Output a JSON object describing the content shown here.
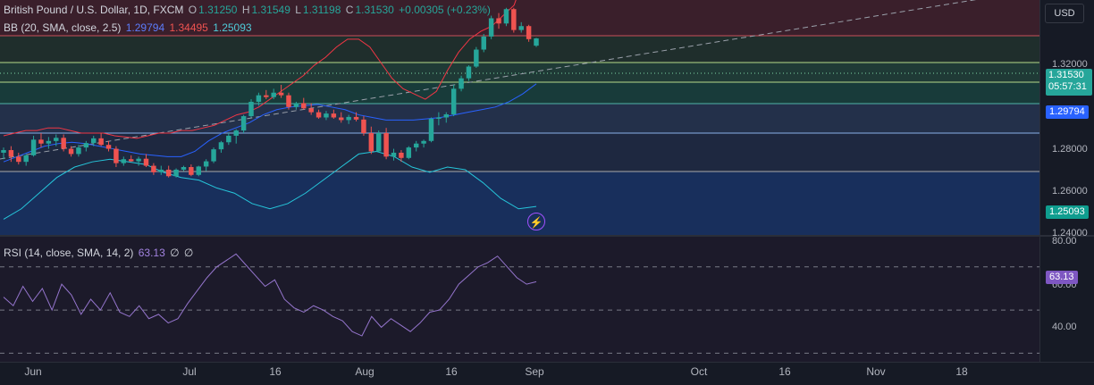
{
  "symbol_header": {
    "title": "British Pound / U.S. Dollar, 1D, FXCM",
    "o_label": "O",
    "o_value": "1.31250",
    "h_label": "H",
    "h_value": "1.31549",
    "l_label": "L",
    "l_value": "1.31198",
    "c_label": "C",
    "c_value": "1.31530",
    "change": "+0.00305 (+0.23%)"
  },
  "bb_legend": {
    "label": "BB (20, SMA, close, 2.5)",
    "basis": "1.29794",
    "upper": "1.34495",
    "lower": "1.25093"
  },
  "rsi_legend": {
    "label": "RSI (14, close, SMA, 14, 2)",
    "value": "63.13",
    "extra1": "∅",
    "extra2": "∅"
  },
  "currency_button": "USD",
  "price_axis": {
    "ticks": [
      "1.32000",
      "1.28000",
      "1.26000",
      "1.24000"
    ],
    "last_price": "1.31530",
    "countdown": "05:57:31",
    "basis_label": "1.29794",
    "lower_label": "1.25093"
  },
  "rsi_axis": {
    "ticks": [
      "80.00",
      "60.00",
      "40.00"
    ],
    "value_label": "63.13"
  },
  "time_axis": [
    "Jun",
    "Jul",
    "16",
    "Aug",
    "16",
    "Sep",
    "Oct",
    "16",
    "Nov",
    "18"
  ],
  "colors": {
    "background": "#161a25",
    "bull": "#26a69a",
    "bear": "#ef5350",
    "bb_basis": "#2962ff",
    "bb_upper": "#f23645",
    "bb_lower": "#26c6da",
    "rsi": "#9575cd",
    "alert": "#a251ff"
  },
  "chart_data": {
    "type": "candlestick",
    "price_scale": [
      1.24,
      1.33
    ],
    "candles_ohlc": [
      [
        1.2715,
        1.2735,
        1.269,
        1.2725
      ],
      [
        1.2725,
        1.274,
        1.268,
        1.27
      ],
      [
        1.27,
        1.2715,
        1.267,
        1.268
      ],
      [
        1.268,
        1.271,
        1.2665,
        1.2705
      ],
      [
        1.2705,
        1.278,
        1.27,
        1.2765
      ],
      [
        1.2765,
        1.279,
        1.2735,
        1.275
      ],
      [
        1.275,
        1.2775,
        1.273,
        1.276
      ],
      [
        1.276,
        1.2785,
        1.274,
        1.2772
      ],
      [
        1.2772,
        1.2785,
        1.272,
        1.273
      ],
      [
        1.273,
        1.274,
        1.27,
        1.271
      ],
      [
        1.271,
        1.2745,
        1.27,
        1.2735
      ],
      [
        1.2735,
        1.276,
        1.272,
        1.2752
      ],
      [
        1.2752,
        1.278,
        1.274,
        1.277
      ],
      [
        1.277,
        1.279,
        1.274,
        1.2745
      ],
      [
        1.2745,
        1.276,
        1.272,
        1.273
      ],
      [
        1.273,
        1.274,
        1.266,
        1.2675
      ],
      [
        1.2675,
        1.27,
        1.2665,
        1.269
      ],
      [
        1.269,
        1.2705,
        1.268,
        1.2682
      ],
      [
        1.2682,
        1.27,
        1.2665,
        1.2692
      ],
      [
        1.2692,
        1.271,
        1.266,
        1.2665
      ],
      [
        1.2665,
        1.2675,
        1.263,
        1.264
      ],
      [
        1.264,
        1.2665,
        1.263,
        1.265
      ],
      [
        1.265,
        1.2665,
        1.262,
        1.2625
      ],
      [
        1.2625,
        1.2655,
        1.262,
        1.265
      ],
      [
        1.265,
        1.2665,
        1.2645,
        1.266
      ],
      [
        1.266,
        1.267,
        1.2625,
        1.263
      ],
      [
        1.263,
        1.2665,
        1.2625,
        1.2662
      ],
      [
        1.2662,
        1.269,
        1.2645,
        1.2682
      ],
      [
        1.2682,
        1.2735,
        1.2675,
        1.2728
      ],
      [
        1.2728,
        1.276,
        1.2715,
        1.2755
      ],
      [
        1.2755,
        1.279,
        1.2745,
        1.278
      ],
      [
        1.278,
        1.2805,
        1.275,
        1.28
      ],
      [
        1.28,
        1.286,
        1.279,
        1.2855
      ],
      [
        1.2855,
        1.292,
        1.285,
        1.291
      ],
      [
        1.291,
        1.2945,
        1.2895,
        1.2935
      ],
      [
        1.2935,
        1.2955,
        1.292,
        1.2928
      ],
      [
        1.2928,
        1.296,
        1.292,
        1.2945
      ],
      [
        1.2945,
        1.2975,
        1.2925,
        1.2935
      ],
      [
        1.2935,
        1.2945,
        1.288,
        1.289
      ],
      [
        1.289,
        1.291,
        1.288,
        1.2905
      ],
      [
        1.2905,
        1.2925,
        1.288,
        1.2885
      ],
      [
        1.2885,
        1.2905,
        1.286,
        1.287
      ],
      [
        1.287,
        1.288,
        1.2845,
        1.285
      ],
      [
        1.285,
        1.2875,
        1.284,
        1.2865
      ],
      [
        1.2865,
        1.288,
        1.2845,
        1.285
      ],
      [
        1.285,
        1.287,
        1.283,
        1.284
      ],
      [
        1.284,
        1.286,
        1.2825,
        1.2852
      ],
      [
        1.2852,
        1.287,
        1.2835,
        1.2842
      ],
      [
        1.2842,
        1.2855,
        1.278,
        1.279
      ],
      [
        1.279,
        1.2815,
        1.271,
        1.272
      ],
      [
        1.272,
        1.28,
        1.2715,
        1.279
      ],
      [
        1.279,
        1.281,
        1.269,
        1.27
      ],
      [
        1.27,
        1.273,
        1.2685,
        1.2715
      ],
      [
        1.2715,
        1.2725,
        1.268,
        1.2695
      ],
      [
        1.2695,
        1.274,
        1.269,
        1.2735
      ],
      [
        1.2735,
        1.276,
        1.272,
        1.275
      ],
      [
        1.275,
        1.2765,
        1.2735,
        1.276
      ],
      [
        1.276,
        1.285,
        1.2755,
        1.2845
      ],
      [
        1.2845,
        1.287,
        1.282,
        1.285
      ],
      [
        1.285,
        1.287,
        1.283,
        1.2862
      ],
      [
        1.2862,
        1.2975,
        1.2855,
        1.296
      ],
      [
        1.296,
        1.301,
        1.295,
        1.3
      ],
      [
        1.3,
        1.305,
        1.299,
        1.3045
      ],
      [
        1.3045,
        1.312,
        1.304,
        1.311
      ],
      [
        1.311,
        1.317,
        1.31,
        1.316
      ],
      [
        1.316,
        1.324,
        1.315,
        1.323
      ],
      [
        1.323,
        1.325,
        1.319,
        1.321
      ],
      [
        1.321,
        1.327,
        1.32,
        1.3265
      ],
      [
        1.3265,
        1.327,
        1.3175,
        1.3185
      ],
      [
        1.3185,
        1.3215,
        1.3175,
        1.32
      ],
      [
        1.32,
        1.3205,
        1.314,
        1.315
      ],
      [
        1.3125,
        1.3155,
        1.312,
        1.3153
      ]
    ],
    "bb_upper": [
      1.278,
      1.279,
      1.28,
      1.28,
      1.281,
      1.281,
      1.28,
      1.279,
      1.279,
      1.279,
      1.278,
      1.2775,
      1.277,
      1.278,
      1.279,
      1.279,
      1.28,
      1.28,
      1.281,
      1.282,
      1.284,
      1.286,
      1.287,
      1.289,
      1.292,
      1.295,
      1.298,
      1.301,
      1.305,
      1.308,
      1.312,
      1.315,
      1.315,
      1.312,
      1.306,
      1.3,
      1.296,
      1.294,
      1.292,
      1.295,
      1.303,
      1.31,
      1.315,
      1.318,
      1.32,
      1.324,
      1.328,
      1.34,
      1.3449
    ],
    "bb_basis": [
      1.268,
      1.27,
      1.272,
      1.274,
      1.275,
      1.2755,
      1.275,
      1.274,
      1.273,
      1.272,
      1.271,
      1.2705,
      1.27,
      1.27,
      1.272,
      1.276,
      1.279,
      1.281,
      1.283,
      1.286,
      1.288,
      1.289,
      1.2895,
      1.29,
      1.289,
      1.288,
      1.286,
      1.285,
      1.284,
      1.284,
      1.284,
      1.2845,
      1.285,
      1.286,
      1.287,
      1.288,
      1.289,
      1.291,
      1.294,
      1.2979
    ],
    "bb_lower": [
      1.246,
      1.25,
      1.256,
      1.262,
      1.266,
      1.268,
      1.269,
      1.268,
      1.267,
      1.264,
      1.262,
      1.261,
      1.258,
      1.256,
      1.252,
      1.25,
      1.252,
      1.256,
      1.261,
      1.266,
      1.271,
      1.272,
      1.27,
      1.266,
      1.264,
      1.266,
      1.265,
      1.26,
      1.254,
      1.25,
      1.2509
    ],
    "rsi": [
      56,
      52,
      61,
      54,
      60,
      50,
      62,
      57,
      48,
      55,
      50,
      58,
      49,
      47,
      52,
      46,
      48,
      44,
      46,
      53,
      59,
      65,
      70,
      73,
      76,
      71,
      66,
      61,
      64,
      55,
      51,
      49,
      52,
      50,
      47,
      45,
      40,
      38,
      47,
      42,
      46,
      43,
      40,
      44,
      49,
      50,
      55,
      62,
      66,
      70,
      72,
      75,
      70,
      65,
      62,
      63.13
    ],
    "rsi_levels": [
      70,
      50,
      30
    ],
    "rsi_scale": [
      26,
      84
    ]
  }
}
